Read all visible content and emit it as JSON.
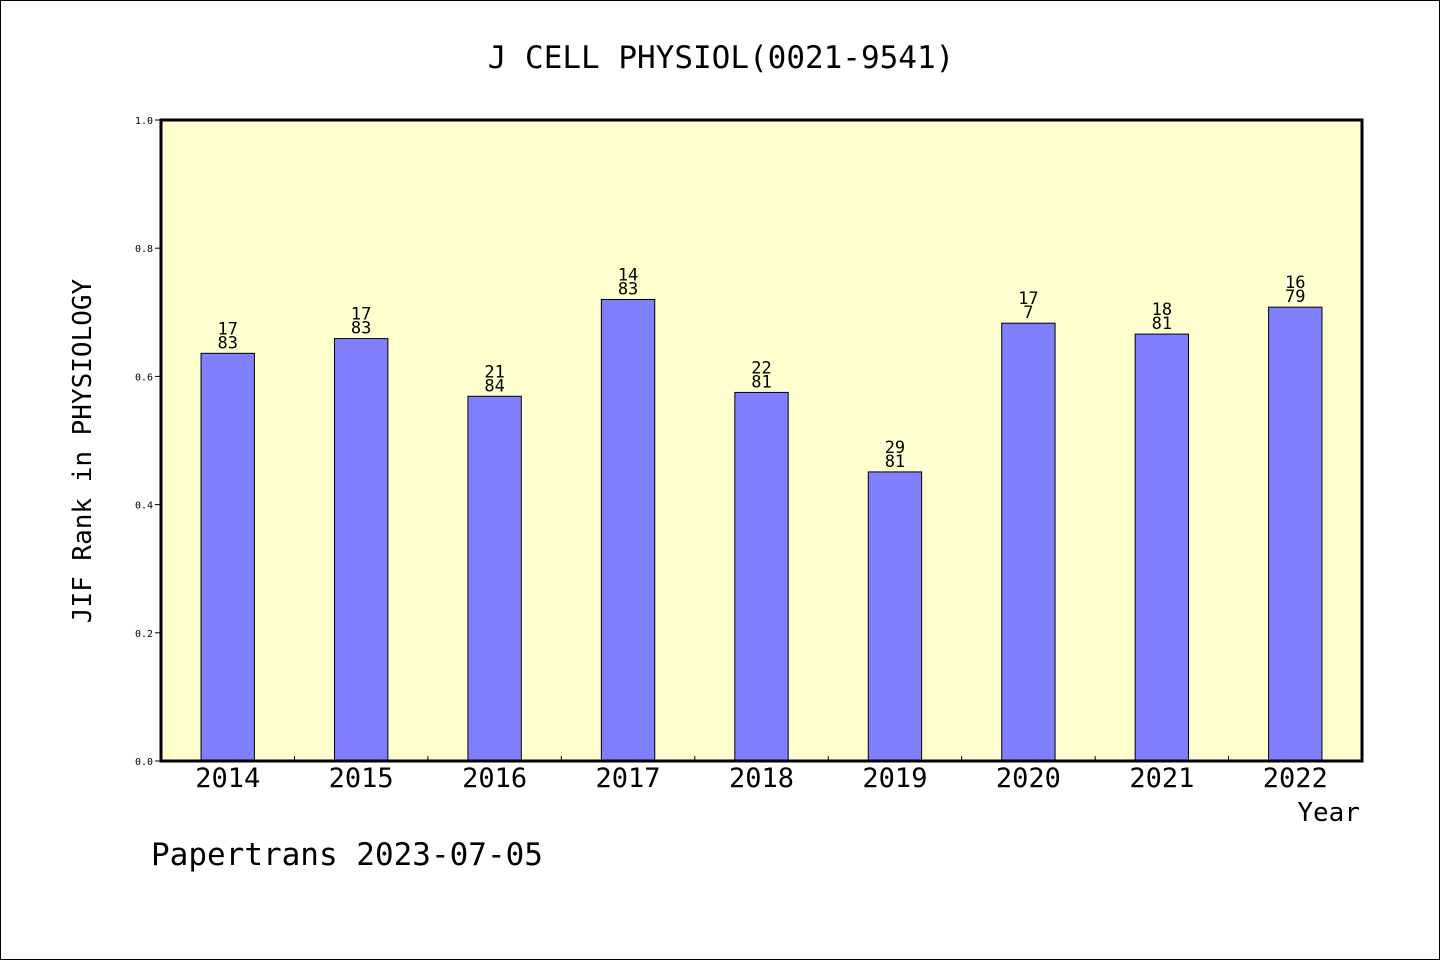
{
  "chart_data": {
    "type": "bar",
    "title": "J CELL PHYSIOL(0021-9541)",
    "xlabel": "Year",
    "ylabel": "JIF Rank in PHYSIOLOGY",
    "ylim": [
      0,
      1
    ],
    "yticks": [
      "0.0",
      "0.2",
      "0.4",
      "0.6",
      "0.8",
      "1.0"
    ],
    "categories": [
      "2014",
      "2015",
      "2016",
      "2017",
      "2018",
      "2019",
      "2020",
      "2021",
      "2022"
    ],
    "values": [
      0.636,
      0.659,
      0.569,
      0.72,
      0.575,
      0.451,
      0.683,
      0.666,
      0.708
    ],
    "bar_labels": [
      [
        "17",
        "83"
      ],
      [
        "17",
        "83"
      ],
      [
        "21",
        "84"
      ],
      [
        "14",
        "83"
      ],
      [
        "22",
        "81"
      ],
      [
        "29",
        "81"
      ],
      [
        "17",
        "7"
      ],
      [
        "18",
        "81"
      ],
      [
        "16",
        "79"
      ]
    ],
    "grid": false,
    "colors": {
      "plot_background": "#ffffd0",
      "bar_fill": "#8080ff",
      "bar_stroke": "#000000"
    }
  },
  "footer": {
    "text": "Papertrans 2023-07-05"
  }
}
